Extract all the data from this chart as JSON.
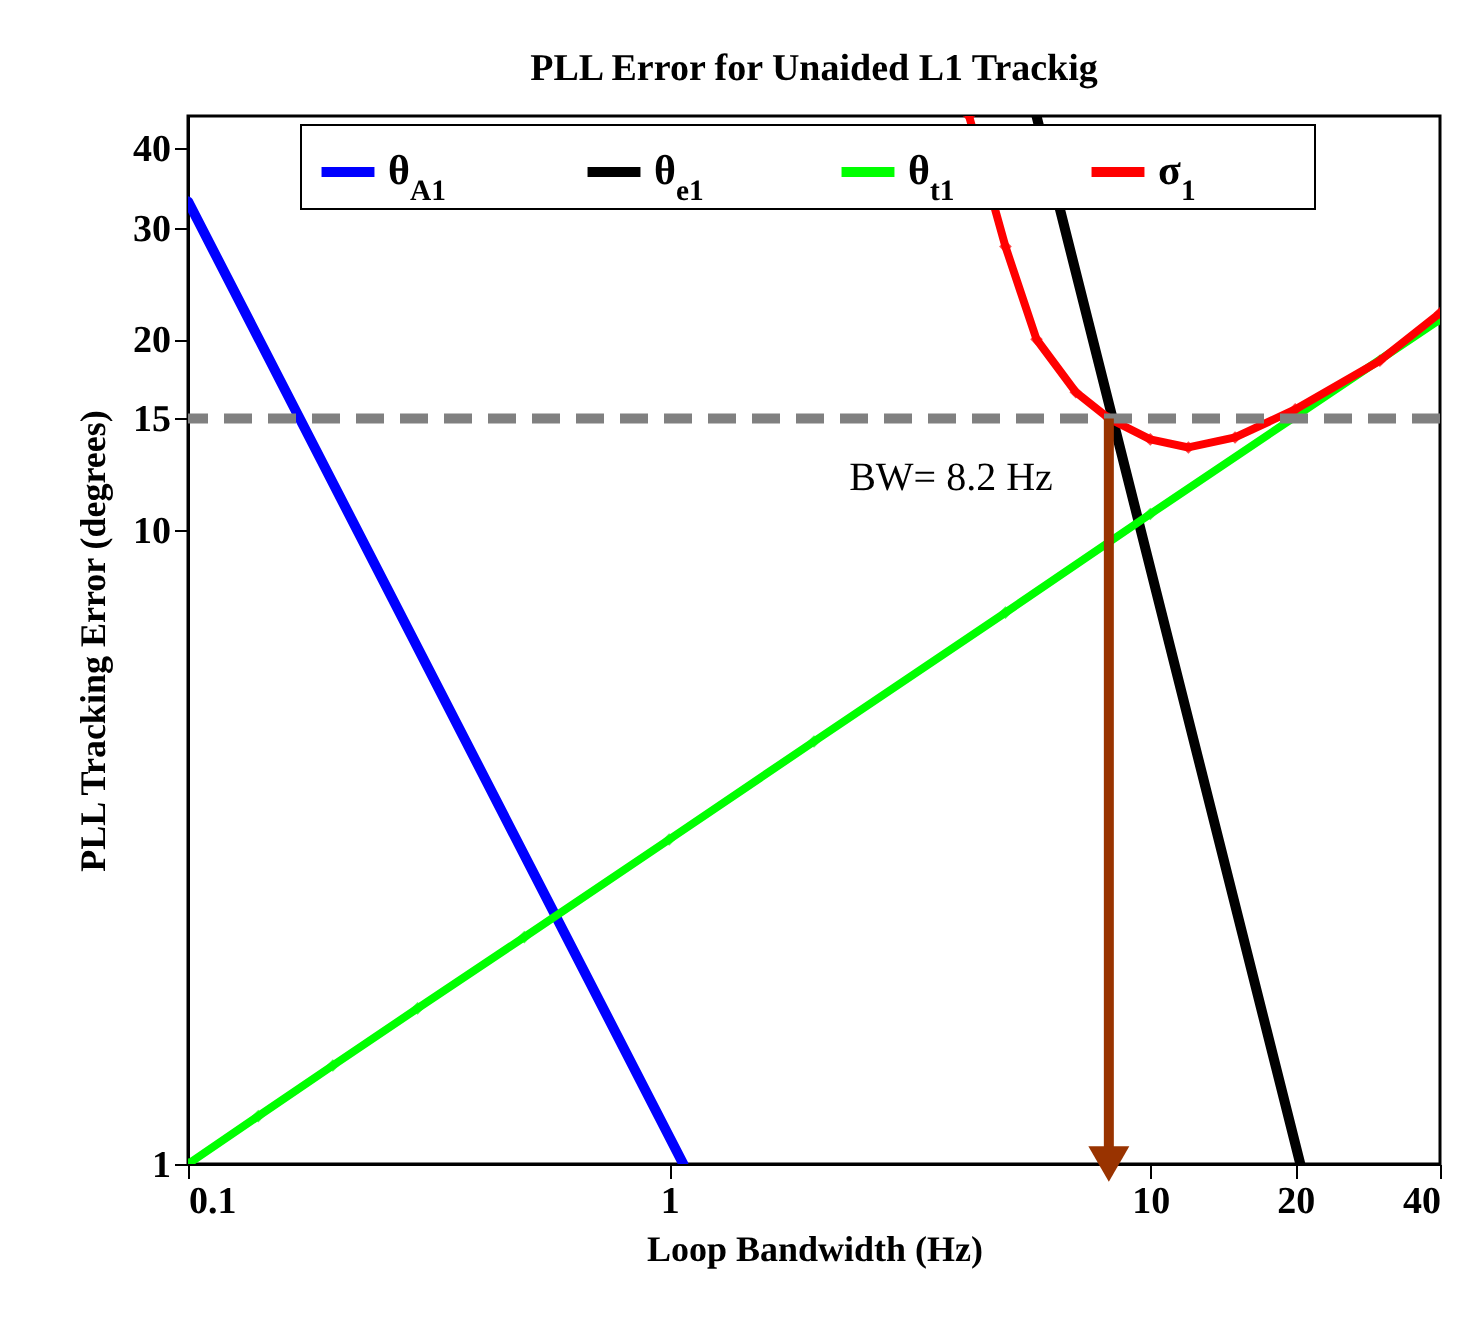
{
  "chart_data": {
    "type": "line",
    "title": "PLL Error for Unaided L1 Trackig",
    "xlabel": "Loop Bandwidth (Hz)",
    "ylabel": "PLL Tracking Error (degrees)",
    "series": [
      {
        "name": "θ$_{A1}$",
        "color": "#0000ff",
        "x": [
          0.1,
          1.07
        ],
        "values": [
          33,
          1
        ]
      },
      {
        "name": "θ$_{e1}$",
        "color": "#000000",
        "x": [
          5.8,
          20.5
        ],
        "values": [
          45,
          1
        ]
      },
      {
        "name": "θ$_{t1}$",
        "color": "#00ff00",
        "marker": "diamond",
        "x": [
          0.1,
          0.14,
          0.2,
          0.3,
          0.5,
          1,
          2,
          5,
          10,
          20,
          40
        ],
        "values": [
          1,
          1.19,
          1.43,
          1.76,
          2.28,
          3.25,
          4.64,
          7.41,
          10.6,
          15.1,
          21.5
        ]
      },
      {
        "name": "σ$_{1}$",
        "color": "#ff0000",
        "marker": "diamond",
        "x": [
          4.2,
          5,
          5.8,
          7,
          8.2,
          10,
          12,
          15,
          20,
          30,
          40
        ],
        "values": [
          45,
          28,
          20,
          16.5,
          15,
          13.9,
          13.5,
          14,
          15.5,
          18.5,
          22
        ]
      }
    ],
    "ref_lines": [
      {
        "axis": "y",
        "value": 15,
        "color": "#808080",
        "line_style": "dashed"
      },
      {
        "axis": "x",
        "value": 8.2,
        "label": "BW= 8.2 Hz",
        "color": "#993300"
      }
    ],
    "log": "xy",
    "xlim": [
      0.1,
      40
    ],
    "ylim": [
      1,
      45
    ],
    "xticks": [
      0.1,
      1,
      10,
      20,
      40
    ],
    "yticks": [
      1,
      10,
      15,
      20,
      30,
      40
    ],
    "grid": false,
    "legend": "top"
  }
}
